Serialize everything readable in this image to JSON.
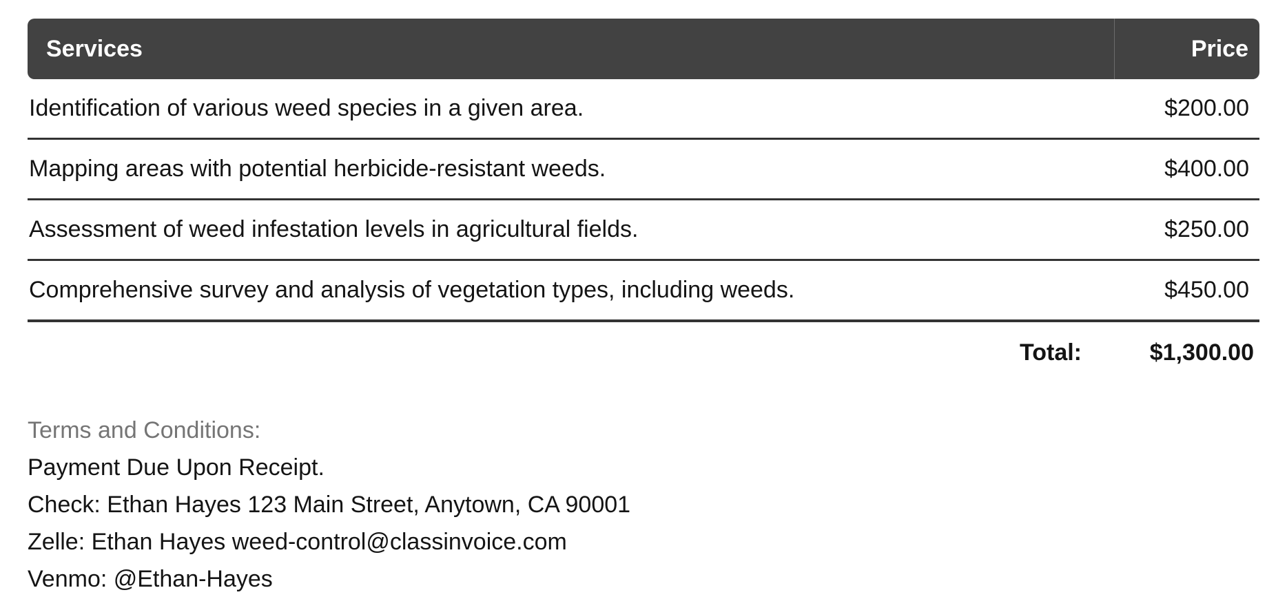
{
  "table": {
    "columns": [
      {
        "label": "Services"
      },
      {
        "label": "Price"
      }
    ],
    "rows": [
      {
        "service": "Identification of various weed species in a given area.",
        "price": "$200.00"
      },
      {
        "service": "Mapping areas with potential herbicide-resistant weeds.",
        "price": "$400.00"
      },
      {
        "service": "Assessment of weed infestation levels in agricultural fields.",
        "price": "$250.00"
      },
      {
        "service": "Comprehensive survey and analysis of vegetation types, including weeds.",
        "price": "$450.00"
      }
    ],
    "total": {
      "label": "Total:",
      "value": "$1,300.00"
    }
  },
  "terms": {
    "heading": "Terms and Conditions:",
    "lines": [
      "Payment Due Upon Receipt.",
      "Check: Ethan Hayes 123 Main Street, Anytown, CA 90001",
      "Zelle: Ethan Hayes weed-control@classinvoice.com",
      "Venmo: @Ethan-Hayes"
    ]
  },
  "colors": {
    "page_bg": "#ffffff",
    "header_bg": "#424242",
    "header_text": "#ffffff",
    "header_divider": "#6b6b6b",
    "row_border": "#333333",
    "text": "#141414",
    "terms_heading": "#757575"
  }
}
